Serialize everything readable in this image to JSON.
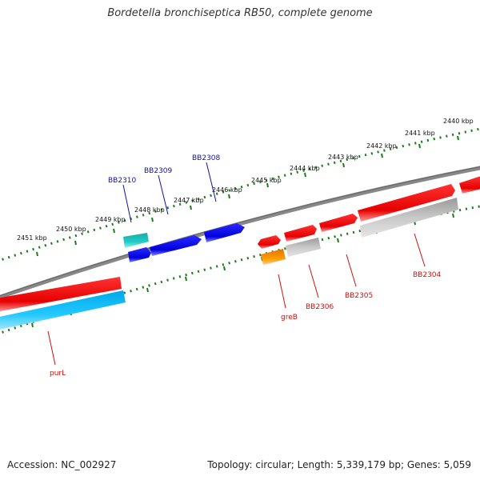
{
  "title": "Bordetella bronchiseptica RB50, complete genome",
  "accession_text": "Accession: NC_002927",
  "stats_text": "Topology: circular; Length: 5,339,179 bp; Genes: 5,059",
  "colors": {
    "background": "#ffffff",
    "backbone": "#777777",
    "tick": "#1f7a1f",
    "gene_red": "#ee1111",
    "gene_blue": "#1111dd",
    "gene_grey": "#bbbbbb",
    "gene_cyan": "#22bbee",
    "gene_teal": "#22bbbb",
    "gene_orange": "#ee8800",
    "label_blue": "#1111aa",
    "label_red": "#cc1111"
  },
  "scale_labels": [
    "2440 kbp",
    "2441 kbp",
    "2442 kbp",
    "2443 kbp",
    "2444 kbp",
    "2445 kbp",
    "2446 kbp",
    "2447 kbp",
    "2448 kbp",
    "2449 kbp",
    "2450 kbp",
    "2451 kbp"
  ],
  "gene_labels": {
    "bb2310": "BB2310",
    "bb2309": "BB2309",
    "bb2308": "BB2308",
    "purl": "purL",
    "greb": "greB",
    "bb2306": "BB2306",
    "bb2305": "BB2305",
    "bb2304": "BB2304"
  }
}
